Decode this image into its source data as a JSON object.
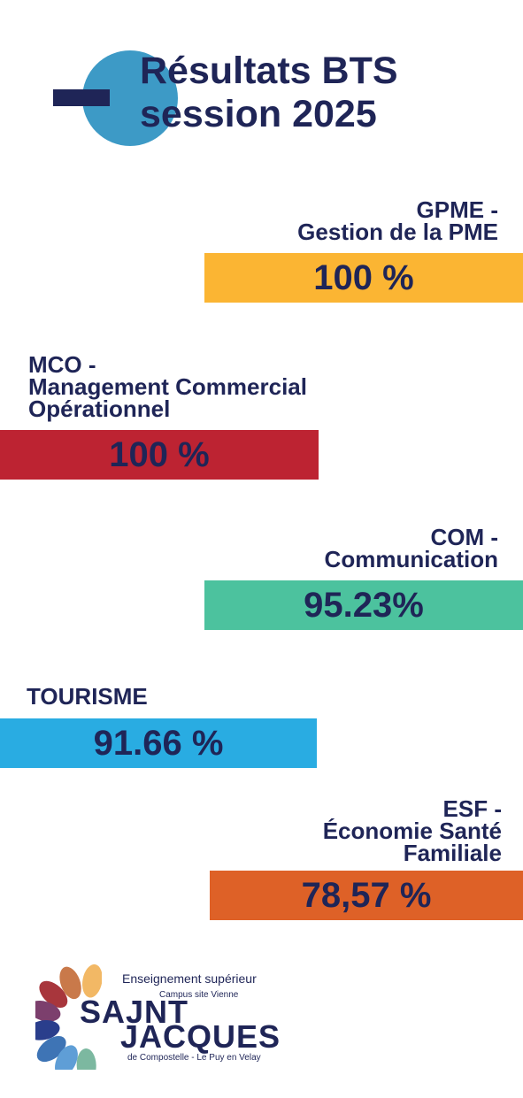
{
  "header": {
    "title_line1": "Résultats BTS",
    "title_line2": "session 2025"
  },
  "colors": {
    "navy": "#1f2557",
    "circle_blue": "#3d9ac6",
    "gpme": "#fbb533",
    "mco": "#bd2332",
    "com": "#4cc29e",
    "tourisme": "#29ace2",
    "esf": "#de6127"
  },
  "results": {
    "gpme": {
      "line1": "GPME -",
      "line2": "Gestion de la PME",
      "rate": "100 %",
      "rate_percent": 100
    },
    "mco": {
      "line1": "MCO -",
      "line2": "Management Commercial",
      "line3": "Opérationnel",
      "rate": "100 %",
      "rate_percent": 100
    },
    "com": {
      "line1": "COM -",
      "line2": "Communication",
      "rate": "95.23%",
      "rate_percent": 95.23
    },
    "tourisme": {
      "line1": "TOURISME",
      "rate": "91.66 %",
      "rate_percent": 91.66
    },
    "esf": {
      "line1": "ESF -",
      "line2": "Économie Santé",
      "line3": "Familiale",
      "rate": "78,57 %",
      "rate_percent": 78.57
    }
  },
  "logo": {
    "tagline1": "Enseignement supérieur",
    "tagline2": "Campus site Vienne",
    "name_line1": "SAJNT",
    "name_line2": "JACQUES",
    "tagline3": "de Compostelle - Le Puy en Velay",
    "petal_icon": "petal-fan-icon"
  }
}
